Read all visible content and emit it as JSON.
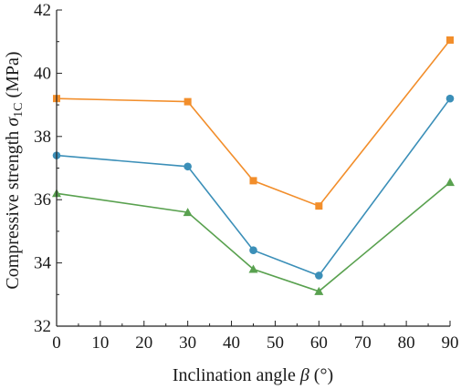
{
  "chart_data": {
    "type": "line",
    "xlabel": {
      "prefix": "Inclination angle ",
      "symbol": "β",
      "suffix": " (°)"
    },
    "ylabel": {
      "prefix": "Compressive strength ",
      "symbol": "σ",
      "subscript": "1C",
      "suffix": " (MPa)"
    },
    "xlim": [
      0,
      90
    ],
    "ylim": [
      32,
      42
    ],
    "xticks": [
      "0",
      "10",
      "20",
      "30",
      "40",
      "50",
      "60",
      "70",
      "80",
      "90"
    ],
    "yticks": [
      "32",
      "34",
      "36",
      "38",
      "40",
      "42"
    ],
    "grid": false,
    "series": [
      {
        "marker": "square",
        "color": "#f28e2b",
        "x": [
          0,
          30,
          45,
          60,
          90
        ],
        "y": [
          39.2,
          39.1,
          36.6,
          35.8,
          41.05
        ]
      },
      {
        "marker": "circle",
        "color": "#3b8fb8",
        "x": [
          0,
          30,
          45,
          60,
          90
        ],
        "y": [
          37.4,
          37.05,
          34.4,
          33.6,
          39.2
        ]
      },
      {
        "marker": "triangle",
        "color": "#59a14f",
        "x": [
          0,
          30,
          45,
          60,
          90
        ],
        "y": [
          36.2,
          35.6,
          33.8,
          33.1,
          36.55
        ]
      }
    ]
  }
}
